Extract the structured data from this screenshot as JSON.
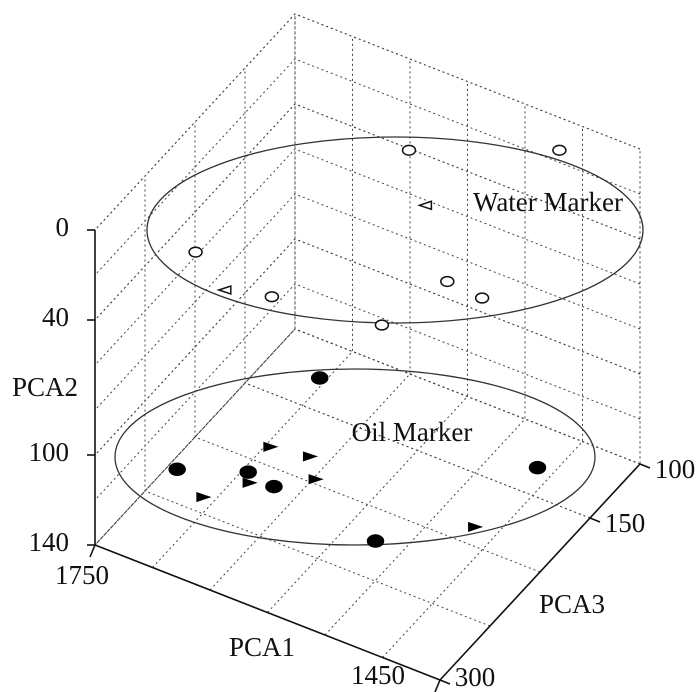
{
  "chart_data": {
    "type": "scatter3d",
    "x_label": "PCA1",
    "y_label": "PCA2",
    "z_label": "PCA3",
    "xlim": [
      1450,
      1750
    ],
    "xticks": [
      1450,
      1750
    ],
    "ylim": [
      0,
      140
    ],
    "yticks": [
      0,
      40,
      100,
      140
    ],
    "zlim": [
      100,
      300
    ],
    "zticks": [
      100,
      150,
      300
    ],
    "grid": true,
    "annotations": [
      "Water Marker",
      "Oil Marker"
    ],
    "series": [
      {
        "marker": "circle",
        "filled": false,
        "color": "#111",
        "x": [
          1610,
          1514,
          1686,
          1611,
          1524,
          1508,
          1476
        ],
        "y": [
          10,
          10,
          10,
          10,
          10,
          10,
          10
        ],
        "z": [
          147,
          107,
          273,
          283,
          273,
          226,
          228
        ]
      },
      {
        "marker": "triangle-left",
        "filled": false,
        "color": "#111",
        "x": [
          1567,
          1645
        ],
        "y": [
          10,
          10
        ],
        "z": [
          180,
          291
        ]
      },
      {
        "marker": "circle",
        "filled": true,
        "color": "#000",
        "x": [
          1692,
          1729,
          1682,
          1657,
          1560,
          1500
        ],
        "y": [
          130,
          130,
          130,
          130,
          130,
          130
        ],
        "z": [
          142,
          242,
          225,
          228,
          238,
          145
        ]
      },
      {
        "marker": "triangle-right",
        "filled": true,
        "color": "#000",
        "x": [
          1683,
          1652,
          1635,
          1696,
          1675,
          1505
        ],
        "y": [
          130,
          130,
          130,
          130,
          130,
          130
        ],
        "z": [
          202,
          198,
          212,
          254,
          232,
          202
        ]
      }
    ]
  }
}
